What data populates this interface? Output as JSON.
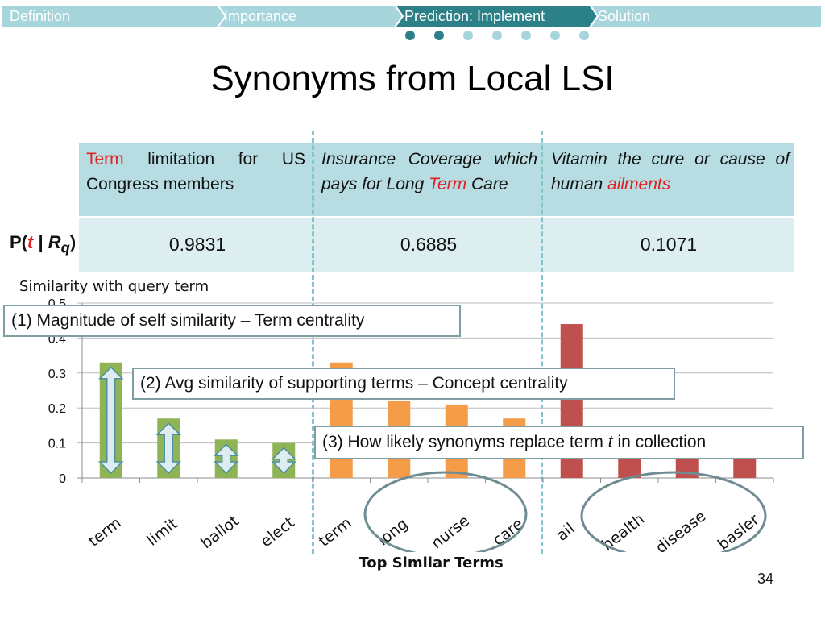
{
  "nav": {
    "items": [
      {
        "label": "Definition",
        "active": false
      },
      {
        "label": "Importance",
        "active": false
      },
      {
        "label": "Prediction: Implement",
        "active": true
      },
      {
        "label": "Solution",
        "active": false
      }
    ],
    "colors": {
      "normal": "#a6d5dc",
      "active": "#2b8187",
      "text": "#ffffff"
    },
    "dots": [
      {
        "filled": true
      },
      {
        "filled": true
      },
      {
        "filled": false
      },
      {
        "filled": false
      },
      {
        "filled": false
      },
      {
        "filled": false
      },
      {
        "filled": false
      }
    ],
    "dot_colors": {
      "filled": "#2b8187",
      "empty": "#a6d5dc"
    }
  },
  "title": "Synonyms from Local LSI",
  "table": {
    "columns": [
      {
        "pre": "",
        "red": "Term",
        "post": " limitation for US Congress members",
        "italic": false
      },
      {
        "pre": "Insurance Coverage which pays for Long ",
        "red": "Term",
        "post": " Care",
        "italic": true
      },
      {
        "pre": "Vitamin the cure or cause of human ",
        "red": "ailments",
        "post": "",
        "italic": true
      }
    ],
    "row_label": {
      "p": "P(",
      "t": "t",
      "bar": " | ",
      "r": "R",
      "q": "q",
      "close": ")"
    },
    "values": [
      "0.9831",
      "0.6885",
      "0.1071"
    ]
  },
  "chart_data": {
    "type": "bar",
    "ylabel": "Similarity with query term",
    "xlabel": "Top Similar Terms",
    "ylim": [
      0,
      0.5
    ],
    "yticks": [
      "0",
      "0.1",
      "0.2",
      "0.3",
      "0.4",
      "0.5"
    ],
    "grid": true,
    "categories": [
      "term",
      "limit",
      "ballot",
      "elect",
      "term",
      "long",
      "nurse",
      "care",
      "ail",
      "health",
      "disease",
      "basler"
    ],
    "values": [
      0.33,
      0.17,
      0.11,
      0.1,
      0.33,
      0.22,
      0.21,
      0.17,
      0.44,
      0.08,
      0.07,
      0.07
    ],
    "groups": [
      {
        "indices": [
          0,
          1,
          2,
          3
        ],
        "color": "#8fb456"
      },
      {
        "indices": [
          4,
          5,
          6,
          7
        ],
        "color": "#f59c48"
      },
      {
        "indices": [
          8,
          9,
          10,
          11
        ],
        "color": "#c0504d"
      }
    ],
    "annotations": [
      "(1) Magnitude of self similarity – Term centrality",
      "(2) Avg similarity of supporting terms – Concept centrality",
      {
        "pre": "(3) How likely synonyms replace term ",
        "it": "t",
        "post": " in collection"
      }
    ]
  },
  "page_number": "34"
}
